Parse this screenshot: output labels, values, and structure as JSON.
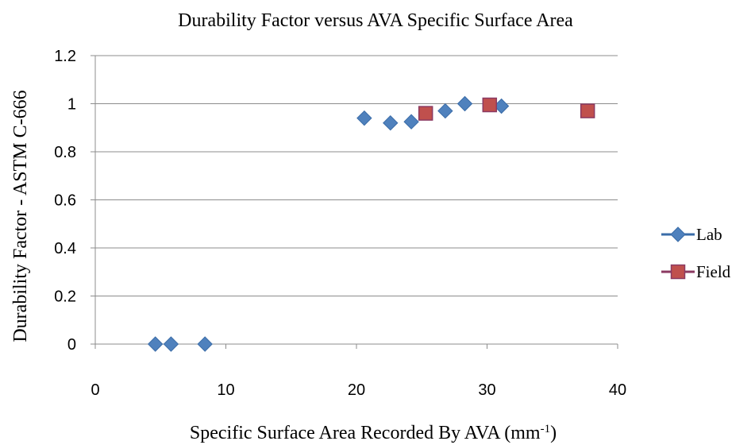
{
  "chart_data": {
    "type": "scatter",
    "title": "Durability Factor versus AVA Specific Surface Area",
    "xlabel": "Specific Surface Area Recorded By AVA (mm",
    "xlabel_superscript": "-1",
    "xlabel_suffix": ")",
    "ylabel": "Durability Factor - ASTM C-666",
    "xlim": [
      0,
      40
    ],
    "ylim": [
      0,
      1.2
    ],
    "x_ticks": [
      "0",
      "10",
      "20",
      "30",
      "40"
    ],
    "y_ticks": [
      "0",
      "0.2",
      "0.4",
      "0.6",
      "0.8",
      "1",
      "1.2"
    ],
    "grid": "horizontal",
    "legend_position": "right",
    "series": [
      {
        "name": "Lab",
        "marker": "diamond",
        "color": "#4f81bd",
        "stroke": "#3a6ca8",
        "points": [
          {
            "x": 4.6,
            "y": 0.0
          },
          {
            "x": 5.8,
            "y": 0.0
          },
          {
            "x": 8.4,
            "y": 0.0
          },
          {
            "x": 20.6,
            "y": 0.94
          },
          {
            "x": 22.6,
            "y": 0.92
          },
          {
            "x": 24.2,
            "y": 0.925
          },
          {
            "x": 26.8,
            "y": 0.97
          },
          {
            "x": 28.3,
            "y": 1.0
          },
          {
            "x": 31.1,
            "y": 0.99
          }
        ]
      },
      {
        "name": "Field",
        "marker": "square",
        "color": "#c0504d",
        "stroke": "#8b3a62",
        "points": [
          {
            "x": 25.3,
            "y": 0.96
          },
          {
            "x": 30.2,
            "y": 0.995
          },
          {
            "x": 37.7,
            "y": 0.97
          }
        ]
      }
    ]
  }
}
